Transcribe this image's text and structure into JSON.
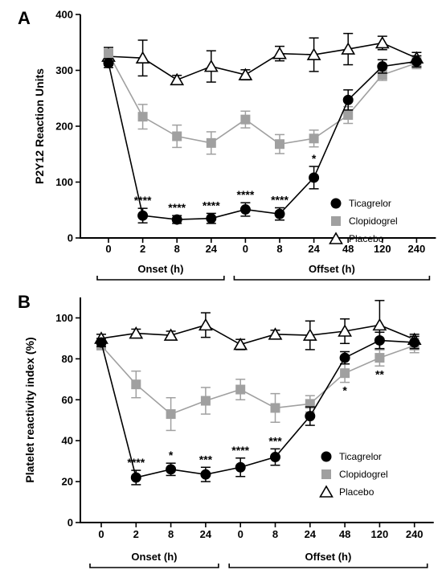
{
  "chart_data": [
    {
      "panel_label": "A",
      "type": "line",
      "ylabel": "P2Y12 Reaction Units",
      "ylim": [
        0,
        400
      ],
      "yticks": [
        0,
        100,
        200,
        300,
        400
      ],
      "categories": [
        "0",
        "2",
        "8",
        "24",
        "0",
        "8",
        "24",
        "48",
        "120",
        "240"
      ],
      "groups": [
        {
          "label": "Onset (h)",
          "from": 0,
          "to": 3
        },
        {
          "label": "Offset (h)",
          "from": 4,
          "to": 9
        }
      ],
      "legend_position": "right",
      "series": [
        {
          "name": "Ticagrelor",
          "marker": "circle",
          "color": "#000000",
          "values": [
            313,
            40,
            33,
            35,
            51,
            43,
            108,
            247,
            307,
            316
          ],
          "errors": [
            8,
            13,
            7,
            9,
            12,
            11,
            20,
            18,
            12,
            10
          ],
          "significance": [
            "",
            "****",
            "****",
            "****",
            "****",
            "****",
            "*",
            "",
            "",
            ""
          ]
        },
        {
          "name": "Clopidogrel",
          "marker": "square",
          "color": "#a0a0a0",
          "values": [
            330,
            217,
            182,
            170,
            212,
            168,
            178,
            220,
            292,
            313
          ],
          "errors": [
            8,
            22,
            20,
            20,
            15,
            17,
            15,
            15,
            10,
            10
          ]
        },
        {
          "name": "Placebo",
          "marker": "triangle",
          "color": "#000000",
          "values": [
            325,
            322,
            283,
            307,
            292,
            330,
            328,
            338,
            349,
            322
          ],
          "errors": [
            16,
            32,
            8,
            28,
            9,
            13,
            30,
            28,
            12,
            10
          ]
        }
      ]
    },
    {
      "panel_label": "B",
      "type": "line",
      "ylabel": "Platelet reactivity index (%)",
      "ylim": [
        0,
        110
      ],
      "yticks": [
        0,
        20,
        40,
        60,
        80,
        100
      ],
      "categories": [
        "0",
        "2",
        "8",
        "24",
        "0",
        "8",
        "24",
        "48",
        "120",
        "240"
      ],
      "groups": [
        {
          "label": "Onset (h)",
          "from": 0,
          "to": 3
        },
        {
          "label": "Offset (h)",
          "from": 4,
          "to": 9
        }
      ],
      "legend_position": "right",
      "series": [
        {
          "name": "Ticagrelor",
          "marker": "circle",
          "color": "#000000",
          "values": [
            88,
            22,
            26,
            23.5,
            27,
            32,
            52,
            80.5,
            89,
            88
          ],
          "errors": [
            2,
            3.5,
            3,
            3.5,
            4.5,
            4,
            4.5,
            3,
            4,
            3
          ],
          "significance": [
            "",
            "****",
            "*",
            "***",
            "****",
            "***",
            "",
            "",
            "",
            ""
          ]
        },
        {
          "name": "Clopidogrel",
          "marker": "square",
          "color": "#a0a0a0",
          "values": [
            86.5,
            67.5,
            53,
            59.5,
            65,
            56,
            58,
            73,
            80.5,
            86.5
          ],
          "errors": [
            2,
            6.5,
            8,
            6.5,
            5,
            7,
            4,
            4.5,
            4,
            3.5
          ],
          "significance": [
            "",
            "",
            "",
            "",
            "",
            "",
            "",
            "*",
            "**",
            ""
          ]
        },
        {
          "name": "Placebo",
          "marker": "triangle",
          "color": "#000000",
          "values": [
            90,
            92.5,
            91.5,
            96.5,
            87,
            92,
            91.5,
            93.5,
            96.5,
            89.5
          ],
          "errors": [
            2,
            2,
            2,
            6,
            2.5,
            2,
            7,
            6,
            12,
            2.5
          ]
        }
      ]
    }
  ]
}
